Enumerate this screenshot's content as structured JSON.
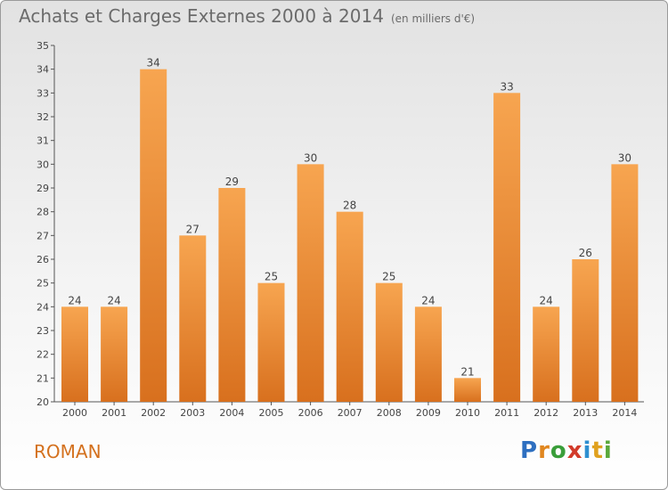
{
  "header": {
    "title": "Achats et Charges Externes 2000 à 2014",
    "subtitle": "(en milliers d'€)"
  },
  "footer": {
    "commune": "ROMAN",
    "logo_text": "Proxiti"
  },
  "colors": {
    "bar_light": "#f7a550",
    "bar_dark": "#d8701e",
    "commune": "#d4711e"
  },
  "chart_data": {
    "type": "bar",
    "title": "Achats et Charges Externes 2000 à 2014",
    "subtitle": "(en milliers d'€)",
    "categories": [
      "2000",
      "2001",
      "2002",
      "2003",
      "2004",
      "2005",
      "2006",
      "2007",
      "2008",
      "2009",
      "2010",
      "2011",
      "2012",
      "2013",
      "2014"
    ],
    "values": [
      24,
      24,
      34,
      27,
      29,
      25,
      30,
      28,
      25,
      24,
      21,
      33,
      24,
      26,
      30
    ],
    "ylim": [
      20,
      35
    ],
    "yticks": [
      20,
      21,
      22,
      23,
      24,
      25,
      26,
      27,
      28,
      29,
      30,
      31,
      32,
      33,
      34,
      35
    ],
    "xlabel": "",
    "ylabel": "",
    "grid": false,
    "legend": "none"
  }
}
